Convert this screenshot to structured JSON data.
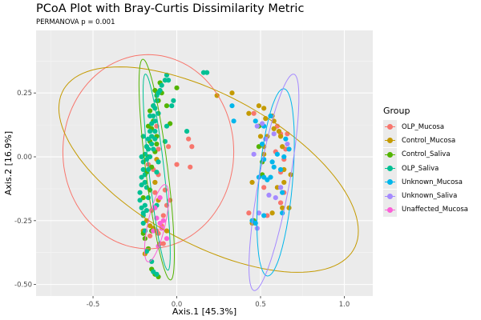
{
  "chart_data": {
    "type": "scatter",
    "title": "PCoA Plot with Bray-Curtis Dissimilarity Metric",
    "subtitle": "PERMANOVA p = 0.001",
    "xlabel": "Axis.1   [45.3%]",
    "ylabel": "Axis.2  [16.9%]",
    "xlim": [
      -0.84,
      1.17
    ],
    "ylim": [
      -0.545,
      0.495
    ],
    "xticks": [
      -0.5,
      0.0,
      0.5,
      1.0
    ],
    "xtick_labels": [
      "-0.5",
      "0.0",
      "0.5",
      "1.0"
    ],
    "yticks": [
      0.25,
      0.0,
      -0.25,
      -0.5
    ],
    "ytick_labels": [
      "0.25",
      "0.00",
      "-0.25",
      "-0.50"
    ],
    "grid": true,
    "legend": {
      "title": "Group",
      "placement": "right"
    },
    "series": [
      {
        "name": "OLP_Mucosa",
        "color": "#F8766D",
        "ellipse": {
          "cx": -0.17,
          "cy": 0.02,
          "rx": 0.51,
          "ry": 0.38,
          "angle": 0
        },
        "points": [
          [
            0.07,
            0.07
          ],
          [
            0.09,
            0.04
          ],
          [
            0.08,
            -0.04
          ],
          [
            0.0,
            -0.03
          ],
          [
            -0.09,
            -0.27
          ],
          [
            -0.07,
            -0.13
          ],
          [
            -0.06,
            -0.19
          ],
          [
            -0.11,
            -0.07
          ],
          [
            -0.13,
            -0.14
          ],
          [
            -0.17,
            -0.03
          ],
          [
            -0.11,
            0.03
          ],
          [
            -0.12,
            0.12
          ],
          [
            -0.08,
            -0.34
          ],
          [
            -0.1,
            -0.34
          ],
          [
            -0.04,
            -0.17
          ],
          [
            -0.08,
            -0.23
          ],
          [
            -0.11,
            -0.3
          ],
          [
            -0.15,
            -0.21
          ],
          [
            -0.16,
            -0.31
          ],
          [
            -0.12,
            -0.29
          ],
          [
            -0.14,
            -0.05
          ],
          [
            0.46,
            0.17
          ],
          [
            0.6,
            0.12
          ],
          [
            0.62,
            0.09
          ],
          [
            0.59,
            0.02
          ],
          [
            0.65,
            0.03
          ],
          [
            0.64,
            -0.01
          ],
          [
            0.62,
            -0.06
          ],
          [
            0.52,
            -0.12
          ],
          [
            0.64,
            -0.14
          ],
          [
            0.46,
            -0.25
          ],
          [
            0.43,
            -0.22
          ],
          [
            0.62,
            -0.18
          ],
          [
            0.54,
            -0.23
          ],
          [
            0.66,
            0.09
          ],
          [
            -0.05,
            0.04
          ],
          [
            -0.13,
            -0.1
          ]
        ]
      },
      {
        "name": "Control_Mucosa",
        "color": "#C49A00",
        "ellipse": {
          "cx": 0.19,
          "cy": -0.05,
          "rx": 0.93,
          "ry": 0.31,
          "angle": -17
        },
        "points": [
          [
            0.24,
            0.24
          ],
          [
            0.33,
            0.25
          ],
          [
            0.43,
            0.17
          ],
          [
            0.49,
            0.2
          ],
          [
            0.52,
            0.19
          ],
          [
            0.53,
            0.15
          ],
          [
            0.58,
            0.11
          ],
          [
            0.54,
            0.08
          ],
          [
            0.62,
            0.08
          ],
          [
            0.61,
            0.1
          ],
          [
            0.5,
            0.08
          ],
          [
            0.52,
            0.04
          ],
          [
            0.57,
            0.16
          ],
          [
            0.52,
            0.01
          ],
          [
            0.63,
            0.04
          ],
          [
            0.58,
            0.14
          ],
          [
            0.64,
            -0.05
          ],
          [
            0.45,
            -0.1
          ],
          [
            0.6,
            -0.12
          ],
          [
            0.64,
            -0.1
          ],
          [
            0.63,
            -0.2
          ],
          [
            0.67,
            -0.2
          ],
          [
            0.68,
            -0.07
          ],
          [
            -0.12,
            -0.01
          ],
          [
            -0.13,
            -0.1
          ],
          [
            -0.11,
            -0.17
          ],
          [
            -0.06,
            -0.29
          ],
          [
            -0.19,
            -0.38
          ],
          [
            -0.14,
            -0.28
          ],
          [
            -0.2,
            -0.29
          ],
          [
            -0.17,
            -0.36
          ],
          [
            -0.16,
            -0.27
          ],
          [
            0.45,
            -0.26
          ],
          [
            0.57,
            -0.22
          ],
          [
            -0.18,
            -0.25
          ]
        ]
      },
      {
        "name": "Control_Saliva",
        "color": "#53B400",
        "ellipse": {
          "cx": -0.12,
          "cy": -0.05,
          "rx": 0.065,
          "ry": 0.44,
          "angle": 11
        },
        "points": [
          [
            -0.12,
            0.08
          ],
          [
            -0.14,
            0.14
          ],
          [
            -0.15,
            0.11
          ],
          [
            -0.16,
            0.06
          ],
          [
            -0.17,
            0.0
          ],
          [
            -0.13,
            0.02
          ],
          [
            -0.15,
            -0.04
          ],
          [
            -0.18,
            -0.06
          ],
          [
            -0.19,
            -0.1
          ],
          [
            -0.14,
            0.2
          ],
          [
            -0.11,
            0.22
          ],
          [
            -0.09,
            0.25
          ],
          [
            -0.13,
            0.26
          ],
          [
            -0.1,
            0.29
          ],
          [
            -0.16,
            0.18
          ],
          [
            -0.17,
            0.12
          ],
          [
            -0.18,
            0.04
          ],
          [
            -0.16,
            -0.13
          ],
          [
            -0.2,
            -0.16
          ],
          [
            -0.15,
            -0.29
          ],
          [
            -0.17,
            -0.36
          ],
          [
            -0.19,
            -0.32
          ],
          [
            -0.15,
            -0.44
          ],
          [
            -0.13,
            -0.46
          ],
          [
            -0.11,
            -0.47
          ],
          [
            -0.04,
            0.13
          ],
          [
            0.0,
            0.27
          ],
          [
            -0.06,
            0.2
          ],
          [
            0.49,
            0.12
          ],
          [
            0.49,
            0.04
          ],
          [
            0.51,
            -0.02
          ],
          [
            0.51,
            -0.07
          ],
          [
            0.46,
            -0.25
          ],
          [
            -0.2,
            -0.3
          ],
          [
            -0.12,
            0.05
          ]
        ]
      },
      {
        "name": "OLP_Saliva",
        "color": "#00C094",
        "ellipse": {
          "cx": -0.12,
          "cy": -0.06,
          "rx": 0.045,
          "ry": 0.39,
          "angle": 10
        },
        "points": [
          [
            -0.11,
            0.25
          ],
          [
            -0.12,
            0.22
          ],
          [
            -0.13,
            0.19
          ],
          [
            -0.14,
            0.16
          ],
          [
            -0.15,
            0.13
          ],
          [
            -0.16,
            0.1
          ],
          [
            -0.17,
            0.07
          ],
          [
            -0.18,
            0.04
          ],
          [
            -0.19,
            0.01
          ],
          [
            -0.2,
            -0.02
          ],
          [
            -0.2,
            -0.05
          ],
          [
            -0.21,
            -0.08
          ],
          [
            -0.21,
            -0.11
          ],
          [
            -0.22,
            -0.14
          ],
          [
            -0.22,
            -0.17
          ],
          [
            -0.21,
            -0.2
          ],
          [
            -0.2,
            -0.23
          ],
          [
            -0.2,
            -0.26
          ],
          [
            -0.19,
            -0.29
          ],
          [
            -0.18,
            -0.37
          ],
          [
            -0.15,
            -0.41
          ],
          [
            -0.14,
            -0.45
          ],
          [
            -0.12,
            -0.46
          ],
          [
            -0.1,
            0.26
          ],
          [
            -0.12,
            0.24
          ],
          [
            -0.14,
            0.2
          ],
          [
            -0.16,
            0.16
          ],
          [
            -0.13,
            0.14
          ],
          [
            -0.15,
            0.08
          ],
          [
            -0.17,
            0.03
          ],
          [
            -0.18,
            -0.01
          ],
          [
            -0.16,
            0.0
          ],
          [
            -0.19,
            -0.07
          ],
          [
            -0.17,
            -0.05
          ],
          [
            -0.15,
            0.05
          ],
          [
            -0.13,
            0.1
          ],
          [
            -0.11,
            0.17
          ],
          [
            -0.09,
            0.28
          ],
          [
            -0.07,
            0.3
          ],
          [
            -0.06,
            0.32
          ],
          [
            -0.05,
            0.3
          ],
          [
            -0.06,
            0.12
          ],
          [
            -0.07,
            0.06
          ],
          [
            -0.11,
            -0.02
          ],
          [
            -0.12,
            -0.06
          ],
          [
            -0.13,
            0.07
          ],
          [
            -0.14,
            0.03
          ],
          [
            -0.18,
            -0.12
          ],
          [
            -0.17,
            -0.16
          ],
          [
            -0.19,
            -0.19
          ],
          [
            -0.2,
            -0.22
          ],
          [
            -0.18,
            -0.21
          ],
          [
            -0.19,
            -0.1
          ],
          [
            -0.2,
            0.08
          ],
          [
            -0.21,
            0.0
          ],
          [
            -0.03,
            0.2
          ],
          [
            -0.02,
            0.22
          ],
          [
            0.06,
            0.1
          ],
          [
            0.18,
            0.33
          ],
          [
            0.16,
            0.33
          ],
          [
            -0.12,
            -0.19
          ]
        ]
      },
      {
        "name": "Unknown_Mucosa",
        "color": "#00B6EB",
        "ellipse": {
          "cx": 0.59,
          "cy": -0.1,
          "rx": 0.1,
          "ry": 0.37,
          "angle": -8
        },
        "points": [
          [
            0.33,
            0.2
          ],
          [
            0.34,
            0.14
          ],
          [
            0.47,
            0.14
          ],
          [
            0.52,
            0.12
          ],
          [
            0.51,
            0.05
          ],
          [
            0.52,
            -0.01
          ],
          [
            0.57,
            -0.02
          ],
          [
            0.6,
            0.01
          ],
          [
            0.56,
            0.16
          ],
          [
            0.65,
            0.07
          ],
          [
            0.67,
            0.03
          ],
          [
            0.49,
            -0.08
          ],
          [
            0.52,
            -0.08
          ],
          [
            0.62,
            -0.05
          ],
          [
            0.64,
            0.0
          ],
          [
            0.58,
            -0.04
          ],
          [
            0.45,
            -0.25
          ],
          [
            0.47,
            -0.26
          ],
          [
            0.63,
            -0.14
          ],
          [
            0.63,
            -0.22
          ],
          [
            0.54,
            -0.09
          ],
          [
            0.56,
            -0.08
          ],
          [
            0.52,
            -0.23
          ]
        ]
      },
      {
        "name": "Unknown_Saliva",
        "color": "#A58AFF",
        "ellipse": {
          "cx": 0.58,
          "cy": -0.1,
          "rx": 0.09,
          "ry": 0.44,
          "angle": -16
        },
        "points": [
          [
            0.48,
            0.12
          ],
          [
            0.51,
            0.13
          ],
          [
            0.46,
            0.01
          ],
          [
            0.53,
            0.07
          ],
          [
            0.58,
            0.09
          ],
          [
            0.66,
            0.05
          ],
          [
            0.62,
            -0.12
          ],
          [
            0.55,
            -0.15
          ],
          [
            0.49,
            -0.22
          ],
          [
            0.48,
            -0.28
          ],
          [
            0.62,
            -0.12
          ],
          [
            0.59,
            -0.16
          ]
        ]
      },
      {
        "name": "Unaffected_Mucosa",
        "color": "#FB61D7",
        "ellipse": {
          "cx": -0.12,
          "cy": -0.26,
          "rx": 0.05,
          "ry": 0.16,
          "angle": -20
        },
        "points": [
          [
            -0.1,
            -0.16
          ],
          [
            -0.1,
            -0.26
          ],
          [
            -0.08,
            -0.25
          ],
          [
            -0.06,
            -0.32
          ],
          [
            -0.13,
            -0.2
          ],
          [
            -0.12,
            -0.24
          ],
          [
            -0.14,
            -0.29
          ],
          [
            -0.09,
            -0.28
          ],
          [
            -0.11,
            -0.35
          ]
        ]
      }
    ]
  }
}
